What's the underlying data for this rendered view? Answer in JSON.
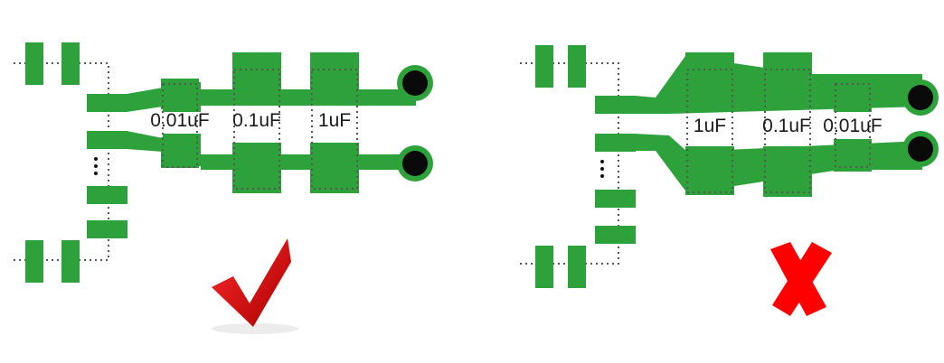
{
  "colors": {
    "pad": "#2ea23a",
    "via": "#0a0a0a",
    "outline": "#555555",
    "check": "#d90000",
    "cross": "#ff0000"
  },
  "good_layout": {
    "verdict_icon": "red-checkmark-icon",
    "capacitors": [
      {
        "label": "0.01uF"
      },
      {
        "label": "0.1uF"
      },
      {
        "label": "1uF"
      }
    ]
  },
  "bad_layout": {
    "verdict_icon": "red-cross-icon",
    "capacitors": [
      {
        "label": "1uF"
      },
      {
        "label": "0.1uF"
      },
      {
        "label": "0.01uF"
      }
    ]
  }
}
